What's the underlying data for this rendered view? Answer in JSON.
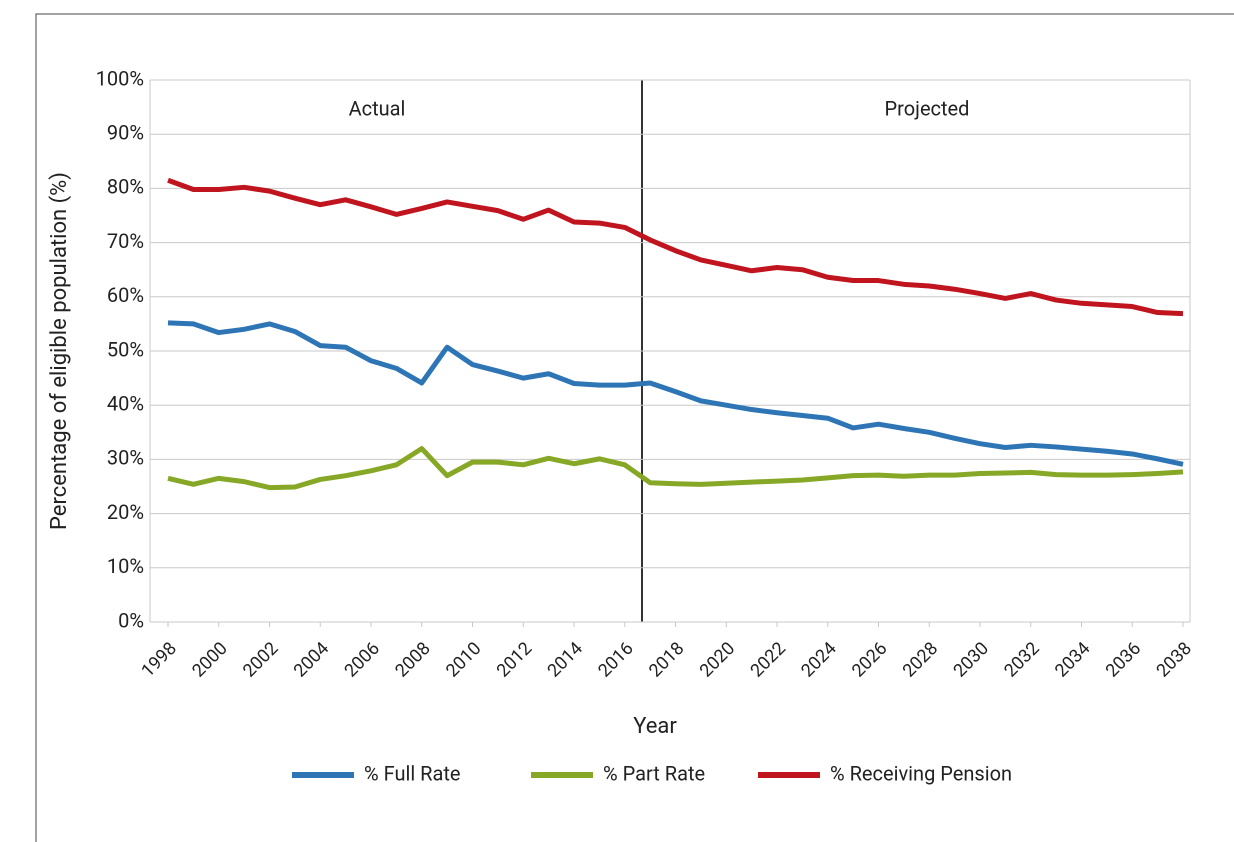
{
  "chart_data": {
    "type": "line",
    "x_label": "Year",
    "y_label": "Percentage of eligible population (%)",
    "annotations": [
      "Actual",
      "Projected"
    ],
    "x": [
      1998,
      1999,
      2000,
      2001,
      2002,
      2003,
      2004,
      2005,
      2006,
      2007,
      2008,
      2009,
      2010,
      2011,
      2012,
      2013,
      2014,
      2015,
      2016,
      2017,
      2018,
      2019,
      2020,
      2021,
      2022,
      2023,
      2024,
      2025,
      2026,
      2027,
      2028,
      2029,
      2030,
      2031,
      2032,
      2033,
      2034,
      2035,
      2036,
      2037,
      2038
    ],
    "xlim": [
      1998,
      2038
    ],
    "xticks": [
      1998,
      2000,
      2002,
      2004,
      2006,
      2008,
      2010,
      2012,
      2014,
      2016,
      2018,
      2020,
      2022,
      2024,
      2026,
      2028,
      2030,
      2032,
      2034,
      2036,
      2038
    ],
    "ylim": [
      0,
      100
    ],
    "yticks": [
      {
        "value": 0,
        "label": "0%"
      },
      {
        "value": 10,
        "label": "10%"
      },
      {
        "value": 20,
        "label": "20%"
      },
      {
        "value": 30,
        "label": "30%"
      },
      {
        "value": 40,
        "label": "40%"
      },
      {
        "value": 50,
        "label": "50%"
      },
      {
        "value": 60,
        "label": "60%"
      },
      {
        "value": 70,
        "label": "70%"
      },
      {
        "value": 80,
        "label": "80%"
      },
      {
        "value": 90,
        "label": "90%"
      },
      {
        "value": 100,
        "label": "100%"
      }
    ],
    "grid": true,
    "legend": "bottom",
    "series": [
      {
        "name": "% Full Rate",
        "color": "#2e75b6",
        "values": [
          55.2,
          55,
          53.4,
          54,
          55,
          53.6,
          51,
          50.7,
          48.2,
          46.8,
          44.1,
          50.7,
          47.5,
          46.3,
          45,
          45.8,
          44,
          43.7,
          43.7,
          44.1,
          42.5,
          40.8,
          40,
          39.2,
          38.6,
          38.1,
          37.6,
          35.8,
          36.5,
          35.7,
          35,
          33.9,
          32.9,
          32.2,
          32.6,
          32.3,
          31.9,
          31.5,
          31,
          30.1,
          29.1
        ]
      },
      {
        "name": "% Part Rate",
        "color": "#86a826",
        "values": [
          26.5,
          25.4,
          26.5,
          25.9,
          24.8,
          24.9,
          26.3,
          27,
          27.9,
          29,
          32,
          27,
          29.5,
          29.5,
          29,
          30.2,
          29.2,
          30.1,
          29,
          25.7,
          25.5,
          25.4,
          25.6,
          25.8,
          26,
          26.2,
          26.6,
          27,
          27.1,
          26.9,
          27.1,
          27.1,
          27.4,
          27.5,
          27.6,
          27.2,
          27.1,
          27.1,
          27.2,
          27.4,
          27.7
        ]
      },
      {
        "name": "% Receiving Pension",
        "color": "#c0141e",
        "values": [
          81.5,
          79.8,
          79.8,
          80.2,
          79.5,
          78.2,
          77,
          77.9,
          76.6,
          75.2,
          76.3,
          77.5,
          76.7,
          75.9,
          74.3,
          76,
          73.8,
          73.6,
          72.8,
          70.5,
          68.5,
          66.8,
          65.8,
          64.8,
          65.4,
          65,
          63.6,
          63,
          63,
          62.3,
          62,
          61.4,
          60.6,
          59.7,
          60.6,
          59.4,
          58.8,
          58.5,
          58.2,
          57.1,
          56.9
        ]
      }
    ]
  }
}
